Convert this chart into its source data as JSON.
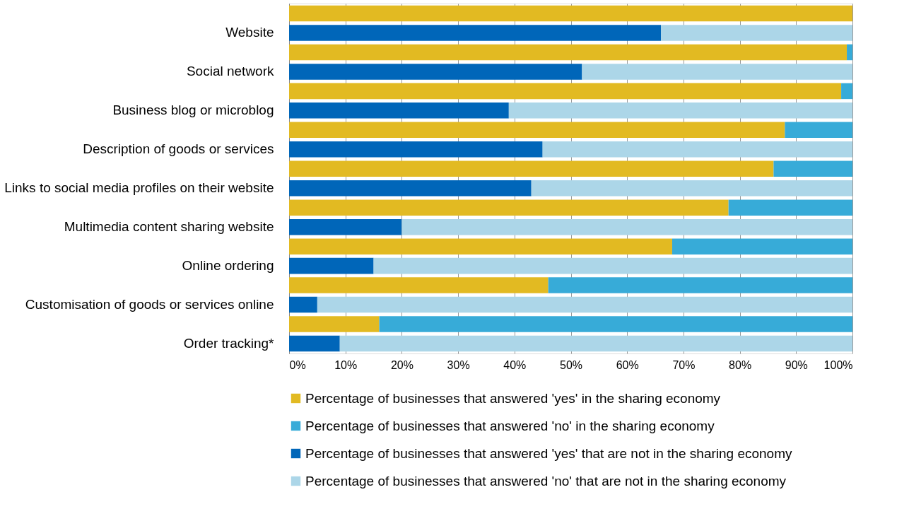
{
  "chart_data": {
    "type": "bar",
    "orientation": "horizontal",
    "stacked": true,
    "categories": [
      null,
      "Website",
      null,
      "Social network",
      null,
      "Business blog or microblog",
      null,
      "Description of goods or services",
      null,
      "Links to social media profiles on their website",
      null,
      "Multimedia content sharing website",
      null,
      "Online ordering",
      null,
      "Customisation of goods or services online",
      null,
      "Order tracking*"
    ],
    "series": [
      {
        "name": "Percentage of businesses that answered 'yes' in the sharing economy",
        "color": "#e2ba22",
        "values": [
          100,
          null,
          99,
          null,
          98,
          null,
          88,
          null,
          86,
          null,
          78,
          null,
          68,
          null,
          46,
          null,
          16,
          null
        ]
      },
      {
        "name": "Percentage of businesses that answered 'no' in the sharing economy",
        "color": "#37abd8",
        "values": [
          0,
          null,
          1,
          null,
          2,
          null,
          12,
          null,
          14,
          null,
          22,
          null,
          32,
          null,
          54,
          null,
          84,
          null
        ]
      },
      {
        "name": "Percentage of businesses that answered 'yes' that are not in the sharing economy",
        "color": "#0066b9",
        "values": [
          null,
          66,
          null,
          52,
          null,
          39,
          null,
          45,
          null,
          43,
          null,
          20,
          null,
          15,
          null,
          5,
          null,
          9
        ]
      },
      {
        "name": "Percentage of businesses that answered 'no' that are not in the sharing economy",
        "color": "#acd6e8",
        "values": [
          null,
          34,
          null,
          48,
          null,
          61,
          null,
          55,
          null,
          57,
          null,
          80,
          null,
          85,
          null,
          95,
          null,
          91
        ]
      }
    ],
    "xlim": [
      0,
      100
    ],
    "xticks": [
      {
        "value": 0,
        "label": "0%"
      },
      {
        "value": 10,
        "label": "10%"
      },
      {
        "value": 20,
        "label": "20%"
      },
      {
        "value": 30,
        "label": "30%"
      },
      {
        "value": 40,
        "label": "40%"
      },
      {
        "value": 50,
        "label": "50%"
      },
      {
        "value": 60,
        "label": "60%"
      },
      {
        "value": 70,
        "label": "70%"
      },
      {
        "value": 80,
        "label": "80%"
      },
      {
        "value": 90,
        "label": "90%"
      },
      {
        "value": 100,
        "label": "100%"
      }
    ],
    "grid": "x",
    "legend": "bottom"
  }
}
